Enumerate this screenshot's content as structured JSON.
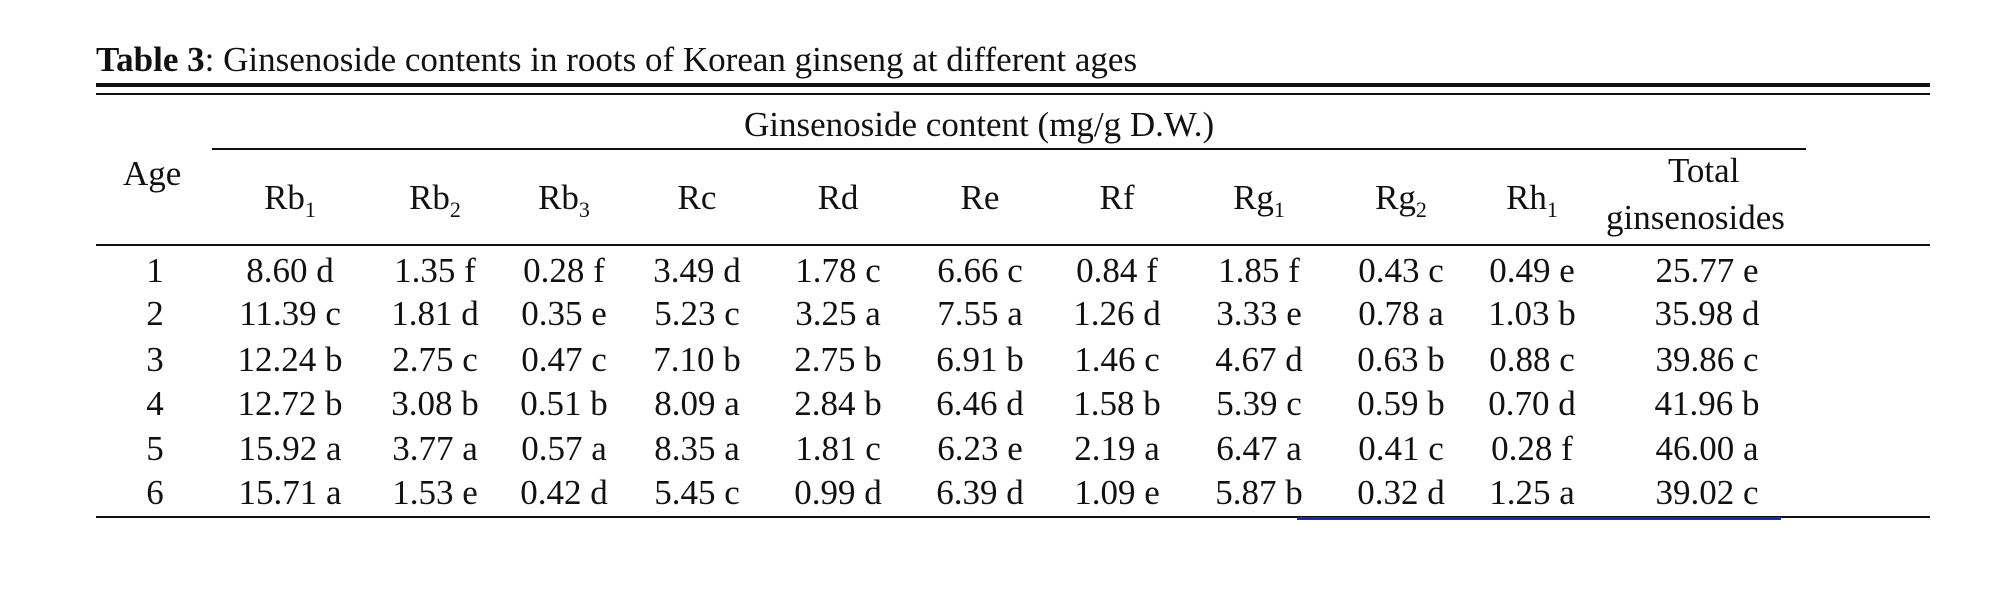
{
  "table": {
    "caption_label": "Table 3",
    "caption_text": ": Ginsenoside contents in roots of Korean ginseng at different ages",
    "row_header": "Age",
    "group_header": "Ginsenoside content (mg/g D.W.)",
    "columns": [
      {
        "base": "Rb",
        "sub": "1"
      },
      {
        "base": "Rb",
        "sub": "2"
      },
      {
        "base": "Rb",
        "sub": "3"
      },
      {
        "base": "Rc",
        "sub": ""
      },
      {
        "base": "Rd",
        "sub": ""
      },
      {
        "base": "Re",
        "sub": ""
      },
      {
        "base": "Rf",
        "sub": ""
      },
      {
        "base": "Rg",
        "sub": "1"
      },
      {
        "base": "Rg",
        "sub": "2"
      },
      {
        "base": "Rh",
        "sub": "1"
      }
    ],
    "total_header_line1": "Total",
    "total_header_line2": "ginsenosides",
    "rows": [
      {
        "age": "1",
        "values": [
          "8.60 d",
          "1.35 f",
          "0.28 f",
          "3.49 d",
          "1.78 c",
          "6.66 c",
          "0.84 f",
          "1.85 f",
          "0.43 c",
          "0.49 e"
        ],
        "total": "25.77 e"
      },
      {
        "age": "2",
        "values": [
          "11.39 c",
          "1.81 d",
          "0.35 e",
          "5.23 c",
          "3.25 a",
          "7.55 a",
          "1.26 d",
          "3.33 e",
          "0.78 a",
          "1.03 b"
        ],
        "total": "35.98 d"
      },
      {
        "age": "3",
        "values": [
          "12.24 b",
          "2.75 c",
          "0.47 c",
          "7.10 b",
          "2.75 b",
          "6.91 b",
          "1.46 c",
          "4.67 d",
          "0.63 b",
          "0.88 c"
        ],
        "total": "39.86 c"
      },
      {
        "age": "4",
        "values": [
          "12.72 b",
          "3.08 b",
          "0.51 b",
          "8.09 a",
          "2.84 b",
          "6.46 d",
          "1.58 b",
          "5.39 c",
          "0.59 b",
          "0.70 d"
        ],
        "total": "41.96 b"
      },
      {
        "age": "5",
        "values": [
          "15.92 a",
          "3.77 a",
          "0.57 a",
          "8.35 a",
          "1.81 c",
          "6.23 e",
          "2.19 a",
          "6.47 a",
          "0.41 c",
          "0.28 f"
        ],
        "total": "46.00 a"
      },
      {
        "age": "6",
        "values": [
          "15.71 a",
          "1.53 e",
          "0.42 d",
          "5.45 c",
          "0.99 d",
          "6.39 d",
          "1.09 e",
          "5.87 b",
          "0.32 d",
          "1.25 a"
        ],
        "total": "39.02 c"
      }
    ]
  },
  "colors": {
    "text": "#111111",
    "underline_accent": "#1a2aa8"
  }
}
